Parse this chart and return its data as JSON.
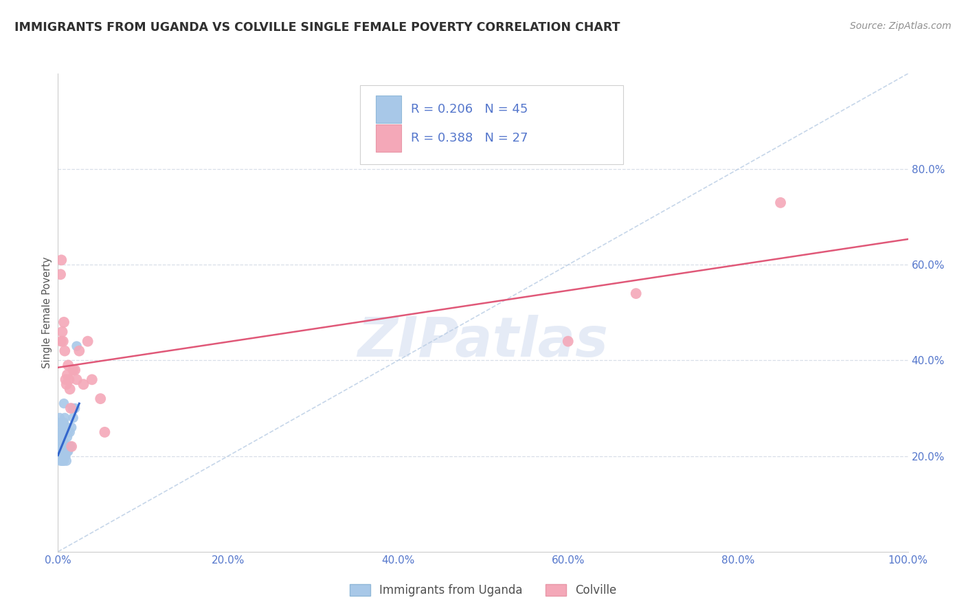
{
  "title": "IMMIGRANTS FROM UGANDA VS COLVILLE SINGLE FEMALE POVERTY CORRELATION CHART",
  "source": "Source: ZipAtlas.com",
  "ylabel": "Single Female Poverty",
  "legend_bottom": [
    "Immigrants from Uganda",
    "Colville"
  ],
  "r_uganda": 0.206,
  "n_uganda": 45,
  "r_colville": 0.388,
  "n_colville": 27,
  "xlim": [
    0,
    1.0
  ],
  "ylim": [
    0,
    1.0
  ],
  "xticks": [
    0,
    0.2,
    0.4,
    0.6,
    0.8,
    1.0
  ],
  "yticks": [
    0.2,
    0.4,
    0.6,
    0.8
  ],
  "xtick_labels": [
    "0.0%",
    "20.0%",
    "40.0%",
    "60.0%",
    "80.0%",
    "100.0%"
  ],
  "ytick_labels_right": [
    "20.0%",
    "40.0%",
    "60.0%",
    "80.0%"
  ],
  "color_uganda": "#a8c8e8",
  "color_colville": "#f4a8b8",
  "line_color_uganda": "#3366cc",
  "line_color_colville": "#e05878",
  "diag_color": "#b8cce4",
  "uganda_x": [
    0.001,
    0.002,
    0.002,
    0.003,
    0.003,
    0.003,
    0.004,
    0.004,
    0.004,
    0.004,
    0.005,
    0.005,
    0.005,
    0.005,
    0.006,
    0.006,
    0.006,
    0.006,
    0.006,
    0.007,
    0.007,
    0.007,
    0.007,
    0.007,
    0.007,
    0.008,
    0.008,
    0.008,
    0.009,
    0.009,
    0.01,
    0.01,
    0.01,
    0.011,
    0.011,
    0.012,
    0.012,
    0.013,
    0.014,
    0.015,
    0.016,
    0.017,
    0.018,
    0.02,
    0.022
  ],
  "uganda_y": [
    0.22,
    0.25,
    0.28,
    0.19,
    0.21,
    0.27,
    0.2,
    0.22,
    0.24,
    0.27,
    0.19,
    0.21,
    0.23,
    0.25,
    0.19,
    0.2,
    0.22,
    0.24,
    0.26,
    0.19,
    0.2,
    0.21,
    0.23,
    0.27,
    0.31,
    0.2,
    0.22,
    0.28,
    0.2,
    0.21,
    0.19,
    0.22,
    0.26,
    0.21,
    0.24,
    0.21,
    0.25,
    0.22,
    0.25,
    0.22,
    0.26,
    0.3,
    0.28,
    0.3,
    0.43
  ],
  "colville_x": [
    0.003,
    0.004,
    0.004,
    0.005,
    0.006,
    0.007,
    0.008,
    0.009,
    0.01,
    0.011,
    0.012,
    0.013,
    0.014,
    0.015,
    0.016,
    0.018,
    0.02,
    0.022,
    0.025,
    0.03,
    0.035,
    0.04,
    0.05,
    0.055,
    0.6,
    0.68,
    0.85
  ],
  "colville_y": [
    0.58,
    0.61,
    0.44,
    0.46,
    0.44,
    0.48,
    0.42,
    0.36,
    0.35,
    0.37,
    0.39,
    0.36,
    0.34,
    0.3,
    0.22,
    0.38,
    0.38,
    0.36,
    0.42,
    0.35,
    0.44,
    0.36,
    0.32,
    0.25,
    0.44,
    0.54,
    0.73
  ],
  "watermark": "ZIPatlas",
  "bg_color": "#ffffff",
  "grid_color": "#d8dfe8",
  "title_color": "#303030",
  "source_color": "#909090",
  "tick_color": "#5577cc"
}
